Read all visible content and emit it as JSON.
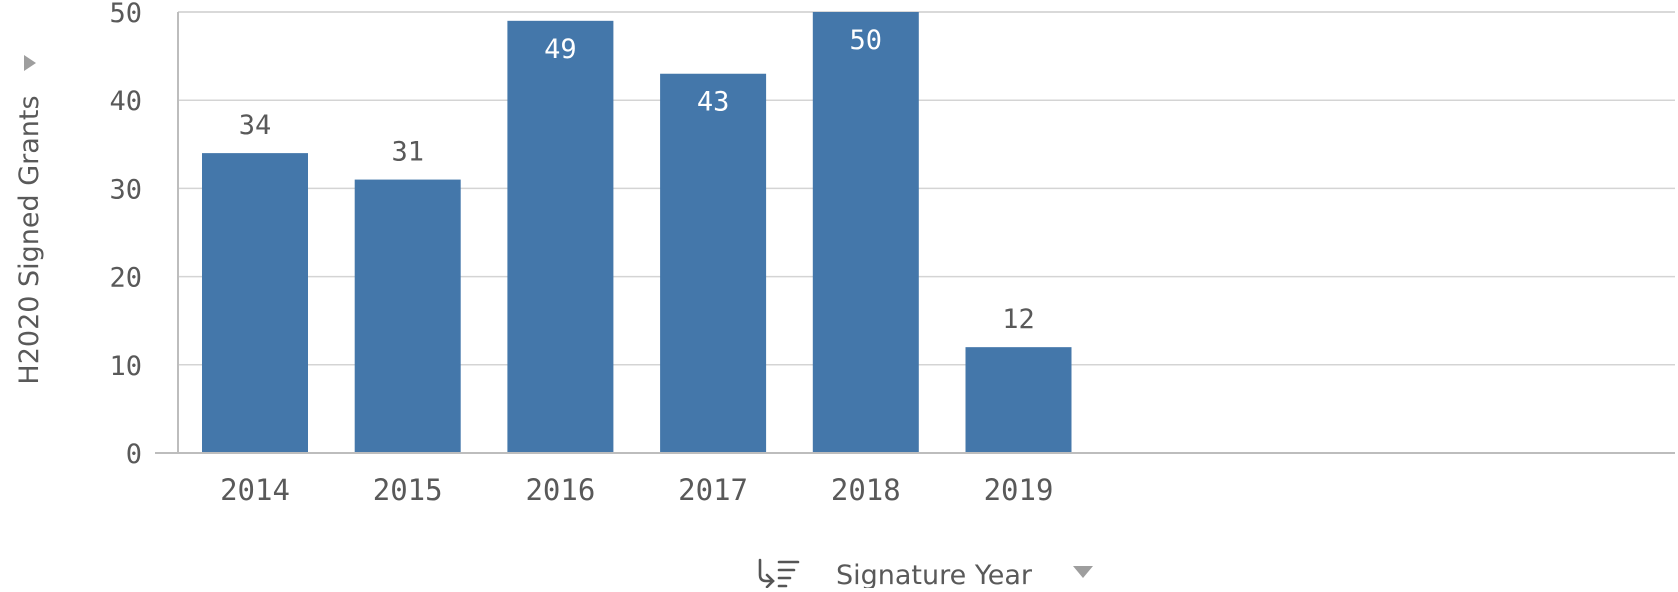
{
  "chart_data": {
    "type": "bar",
    "title": "",
    "xlabel": "Signature Year",
    "ylabel": "H2020 Signed Grants",
    "categories": [
      "2014",
      "2015",
      "2016",
      "2017",
      "2018",
      "2019"
    ],
    "values": [
      34,
      31,
      49,
      43,
      50,
      12
    ],
    "data_labels": [
      "34",
      "31",
      "49",
      "43",
      "50",
      "12"
    ],
    "ylim": [
      0,
      50
    ],
    "yticks": [
      "0",
      "10",
      "20",
      "30",
      "40",
      "50"
    ],
    "grid": true,
    "legend": "none",
    "colors": {
      "bar": "#4477aa",
      "grid": "#d4d4d4",
      "axis": "#bdbdbd",
      "text": "#595959",
      "label_inside": "#ffffff"
    },
    "icons": {
      "ylabel_toggle": "caret-right-icon",
      "sort": "sort-icon",
      "dropdown": "caret-down-icon"
    }
  }
}
